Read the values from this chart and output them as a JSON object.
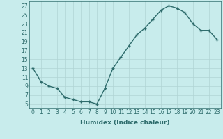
{
  "x": [
    0,
    1,
    2,
    3,
    4,
    5,
    6,
    7,
    8,
    9,
    10,
    11,
    12,
    13,
    14,
    15,
    16,
    17,
    18,
    19,
    20,
    21,
    22,
    23
  ],
  "y": [
    13,
    10,
    9,
    8.5,
    6.5,
    6,
    5.5,
    5.5,
    5,
    8.5,
    13,
    15.5,
    18,
    20.5,
    22,
    24,
    26,
    27,
    26.5,
    25.5,
    23,
    21.5,
    21.5,
    19.5
  ],
  "line_color": "#2d6b6b",
  "marker": "+",
  "marker_color": "#2d6b6b",
  "bg_color": "#c8ecec",
  "grid_color": "#b0d4d4",
  "xlabel": "Humidex (Indice chaleur)",
  "xlim": [
    -0.5,
    23.5
  ],
  "ylim": [
    4,
    28
  ],
  "yticks": [
    5,
    7,
    9,
    11,
    13,
    15,
    17,
    19,
    21,
    23,
    25,
    27
  ],
  "xtick_labels": [
    "0",
    "1",
    "2",
    "3",
    "4",
    "5",
    "6",
    "7",
    "8",
    "9",
    "10",
    "11",
    "12",
    "13",
    "14",
    "15",
    "16",
    "17",
    "18",
    "19",
    "20",
    "21",
    "22",
    "23"
  ],
  "xlabel_fontsize": 6.5,
  "tick_fontsize": 5.5,
  "line_width": 1.0,
  "marker_size": 3.5
}
